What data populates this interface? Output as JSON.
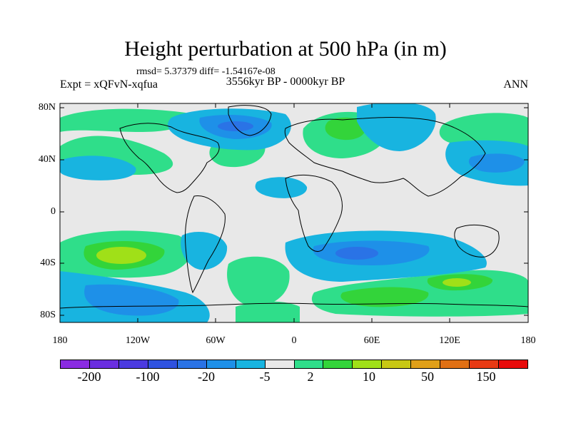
{
  "title": "Height perturbation at 500 hPa (in m)",
  "stats": "rmsd= 5.37379 diff= -1.54167e-08",
  "left_label": "Expt = xQFvN-xqfua",
  "center_label": "3556kyr BP - 0000kyr BP",
  "right_label": "ANN",
  "lat_ticks": [
    "80N",
    "40N",
    "0",
    "40S",
    "80S"
  ],
  "lon_ticks": [
    "180",
    "120W",
    "60W",
    "0",
    "60E",
    "120E",
    "180"
  ],
  "colorbar": {
    "colors": [
      "#8a2be2",
      "#6a2ee0",
      "#4b3ae0",
      "#2f52e0",
      "#2a73e6",
      "#1e90e8",
      "#18b4e0",
      "#e8e8e8",
      "#2fde8a",
      "#33d43a",
      "#a0e018",
      "#c8c814",
      "#e0a018",
      "#e07014",
      "#e83a14",
      "#e80a0a"
    ],
    "tick_labels": [
      "-200",
      "-100",
      "-20",
      "-5",
      "2",
      "10",
      "50",
      "150"
    ]
  },
  "palette": {
    "background": "#e8e8e8",
    "neg_light": "#18b4e0",
    "neg_mid": "#1e90e8",
    "neg_strong": "#2a73e6",
    "pos_light": "#2fde8a",
    "pos_mid": "#33d43a",
    "pos_strong": "#a0e018"
  }
}
